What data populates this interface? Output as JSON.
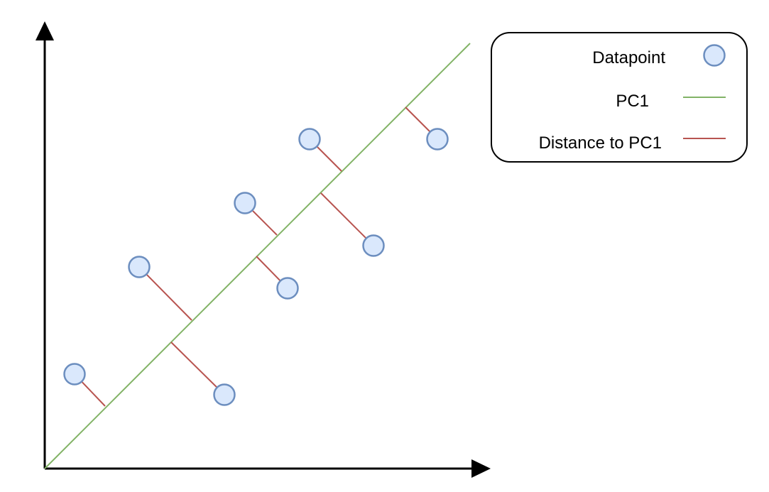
{
  "legend": {
    "items": [
      {
        "label": "Datapoint",
        "symbol": "circle"
      },
      {
        "label": "PC1",
        "symbol": "line"
      },
      {
        "label": "Distance to PC1",
        "symbol": "line"
      }
    ]
  },
  "colors": {
    "datapoint_fill": "#dae8fc",
    "datapoint_stroke": "#6c8ebf",
    "pc1_line": "#82b366",
    "distance_line": "#b85450",
    "axes": "#000000"
  }
}
